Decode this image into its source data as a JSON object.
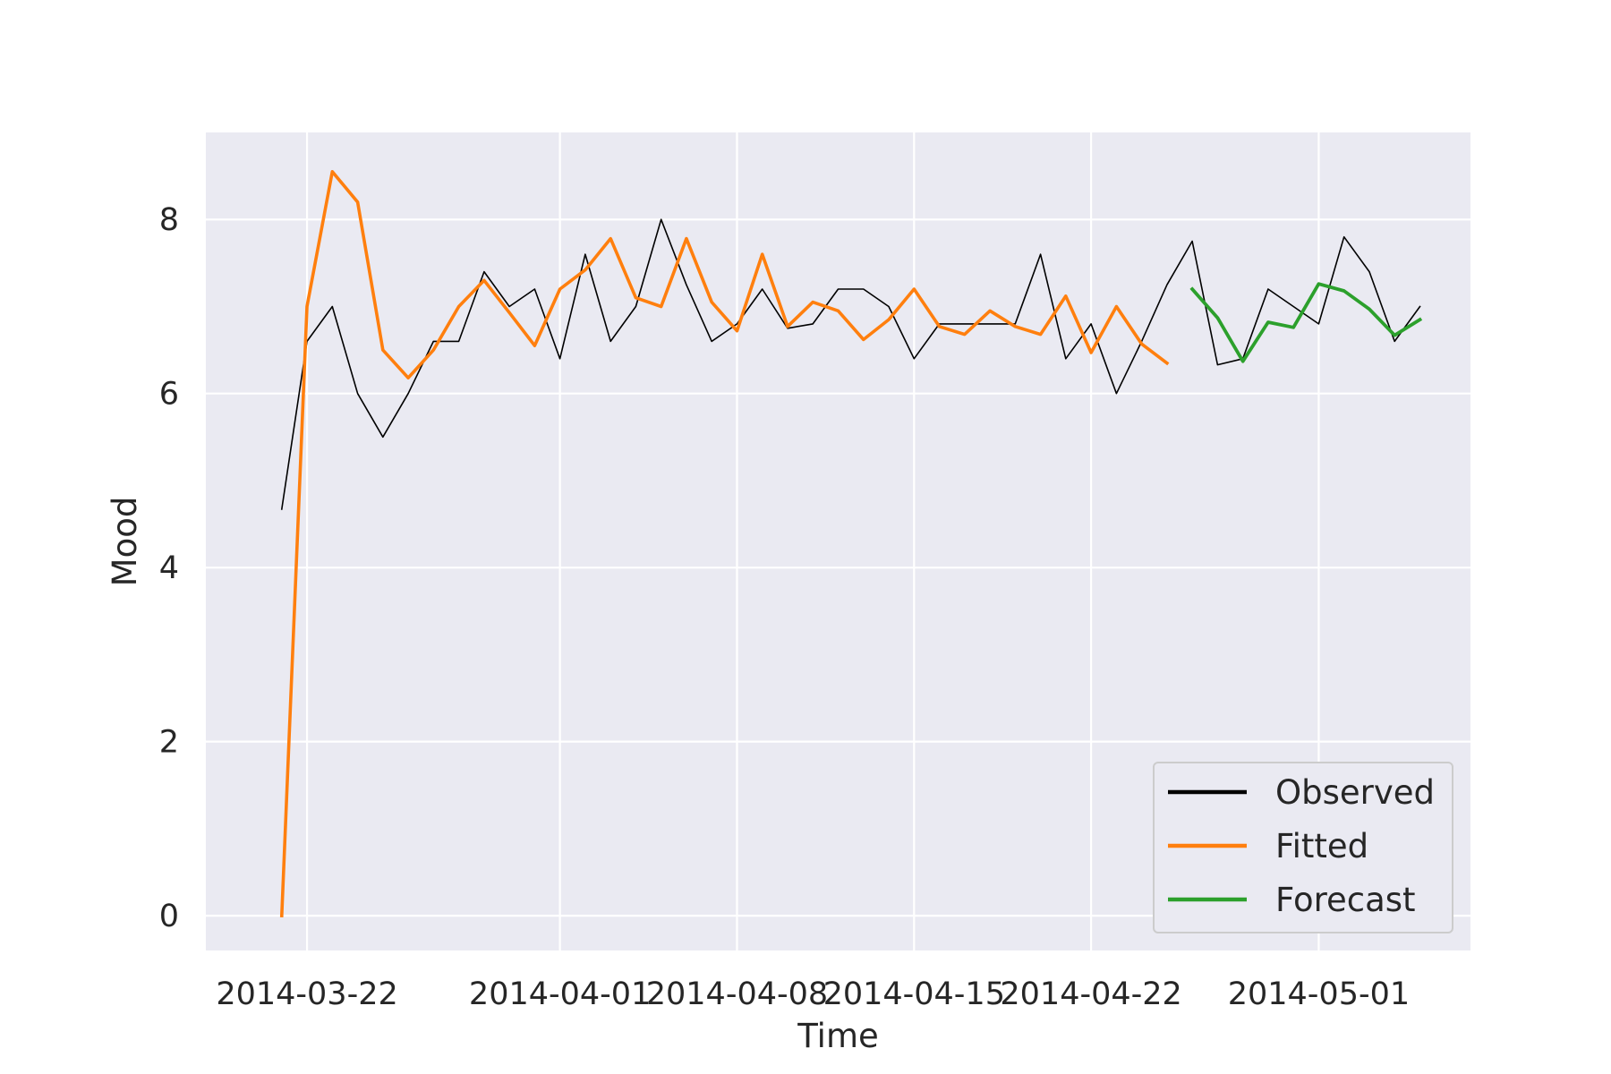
{
  "chart_data": {
    "type": "line",
    "title": "",
    "xlabel": "Time",
    "ylabel": "Mood",
    "x_ticks": [
      "2014-03-22",
      "2014-04-01",
      "2014-04-08",
      "2014-04-15",
      "2014-04-22",
      "2014-05-01"
    ],
    "y_ticks": [
      "0",
      "2",
      "4",
      "6",
      "8"
    ],
    "xlim": [
      "2014-03-18",
      "2014-05-07"
    ],
    "ylim": [
      -0.4,
      9.0
    ],
    "grid": true,
    "legend_position": "lower right",
    "series": [
      {
        "name": "Observed",
        "color": "#000000",
        "x": [
          "2014-03-21",
          "2014-03-22",
          "2014-03-23",
          "2014-03-24",
          "2014-03-25",
          "2014-03-26",
          "2014-03-27",
          "2014-03-28",
          "2014-03-29",
          "2014-03-30",
          "2014-03-31",
          "2014-04-01",
          "2014-04-02",
          "2014-04-03",
          "2014-04-04",
          "2014-04-05",
          "2014-04-06",
          "2014-04-07",
          "2014-04-08",
          "2014-04-09",
          "2014-04-10",
          "2014-04-11",
          "2014-04-12",
          "2014-04-13",
          "2014-04-14",
          "2014-04-15",
          "2014-04-16",
          "2014-04-17",
          "2014-04-18",
          "2014-04-19",
          "2014-04-20",
          "2014-04-21",
          "2014-04-22",
          "2014-04-23",
          "2014-04-24",
          "2014-04-25",
          "2014-04-26",
          "2014-04-27",
          "2014-04-28",
          "2014-04-29",
          "2014-04-30",
          "2014-05-01",
          "2014-05-02",
          "2014-05-03",
          "2014-05-04",
          "2014-05-05"
        ],
        "values": [
          4.67,
          6.6,
          7.0,
          6.0,
          5.5,
          6.0,
          6.6,
          6.6,
          7.4,
          7.0,
          7.2,
          6.4,
          7.6,
          6.6,
          7.0,
          8.0,
          7.25,
          6.6,
          6.8,
          7.2,
          6.75,
          6.8,
          7.2,
          7.2,
          7.0,
          6.4,
          6.8,
          6.8,
          6.8,
          6.8,
          7.6,
          6.4,
          6.8,
          6.0,
          6.6,
          7.25,
          7.75,
          6.33,
          6.4,
          7.2,
          7.0,
          6.8,
          7.8,
          7.4,
          6.6,
          7.0
        ]
      },
      {
        "name": "Fitted",
        "color": "#ff7f0e",
        "x": [
          "2014-03-21",
          "2014-03-22",
          "2014-03-23",
          "2014-03-24",
          "2014-03-25",
          "2014-03-26",
          "2014-03-27",
          "2014-03-28",
          "2014-03-29",
          "2014-03-30",
          "2014-03-31",
          "2014-04-01",
          "2014-04-02",
          "2014-04-03",
          "2014-04-04",
          "2014-04-05",
          "2014-04-06",
          "2014-04-07",
          "2014-04-08",
          "2014-04-09",
          "2014-04-10",
          "2014-04-11",
          "2014-04-12",
          "2014-04-13",
          "2014-04-14",
          "2014-04-15",
          "2014-04-16",
          "2014-04-17",
          "2014-04-18",
          "2014-04-19",
          "2014-04-20",
          "2014-04-21",
          "2014-04-22",
          "2014-04-23",
          "2014-04-24",
          "2014-04-25"
        ],
        "values": [
          0.0,
          7.0,
          8.55,
          8.2,
          6.5,
          6.18,
          6.5,
          7.0,
          7.3,
          6.93,
          6.55,
          7.2,
          7.42,
          7.78,
          7.1,
          7.0,
          7.78,
          7.05,
          6.72,
          7.6,
          6.77,
          7.05,
          6.95,
          6.62,
          6.85,
          7.2,
          6.77,
          6.68,
          6.95,
          6.77,
          6.68,
          7.12,
          6.47,
          7.0,
          6.57,
          6.35
        ]
      },
      {
        "name": "Forecast",
        "color": "#2ca02c",
        "x": [
          "2014-04-26",
          "2014-04-27",
          "2014-04-28",
          "2014-04-29",
          "2014-04-30",
          "2014-05-01",
          "2014-05-02",
          "2014-05-03",
          "2014-05-04",
          "2014-05-05"
        ],
        "values": [
          7.2,
          6.87,
          6.37,
          6.82,
          6.76,
          7.26,
          7.18,
          6.97,
          6.67,
          6.85
        ]
      }
    ]
  }
}
